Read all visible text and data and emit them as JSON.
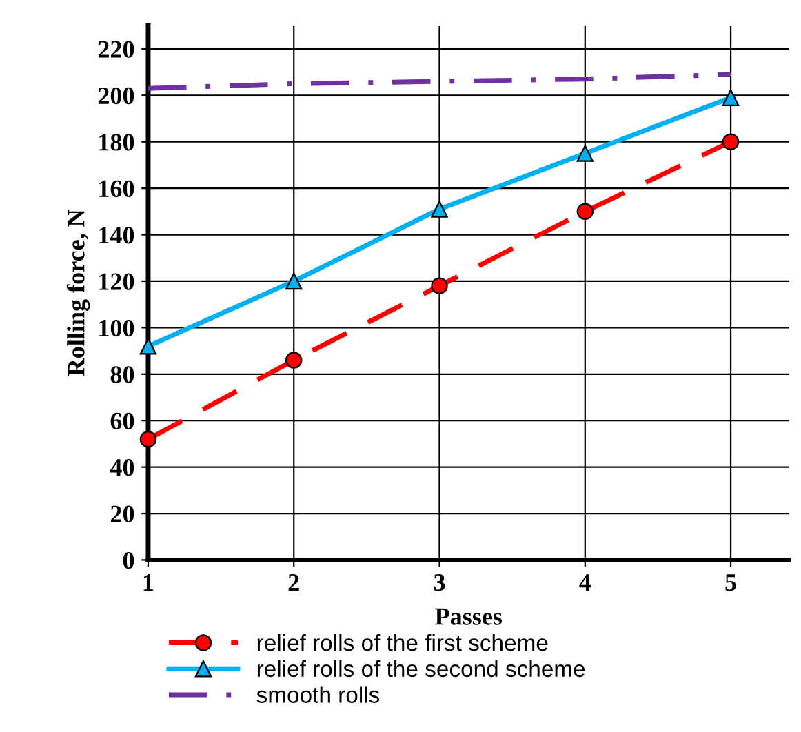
{
  "chart_data": {
    "type": "line",
    "xlabel": "Passes",
    "ylabel": "Rolling force, N",
    "x": [
      1,
      2,
      3,
      4,
      5
    ],
    "series": [
      {
        "name": "relief rolls of the first scheme",
        "color": "#ff0000",
        "values": [
          52,
          86,
          118,
          150,
          180
        ],
        "marker": "circle",
        "line_style": "dashed"
      },
      {
        "name": "relief rolls of the second scheme",
        "color": "#00b0f0",
        "values": [
          92,
          120,
          151,
          175,
          199
        ],
        "marker": "triangle",
        "line_style": "solid"
      },
      {
        "name": "smooth rolls",
        "color": "#7030a0",
        "values": [
          203,
          205,
          206,
          207,
          209
        ],
        "marker": "none",
        "line_style": "dashdot"
      }
    ],
    "xlim": [
      1,
      5.4
    ],
    "xticks": [
      1,
      2,
      3,
      4,
      5
    ],
    "ylim": [
      0,
      230
    ],
    "yticks": [
      0,
      20,
      40,
      60,
      80,
      100,
      120,
      140,
      160,
      180,
      200,
      220
    ],
    "grid": true,
    "legend": "bottom"
  }
}
